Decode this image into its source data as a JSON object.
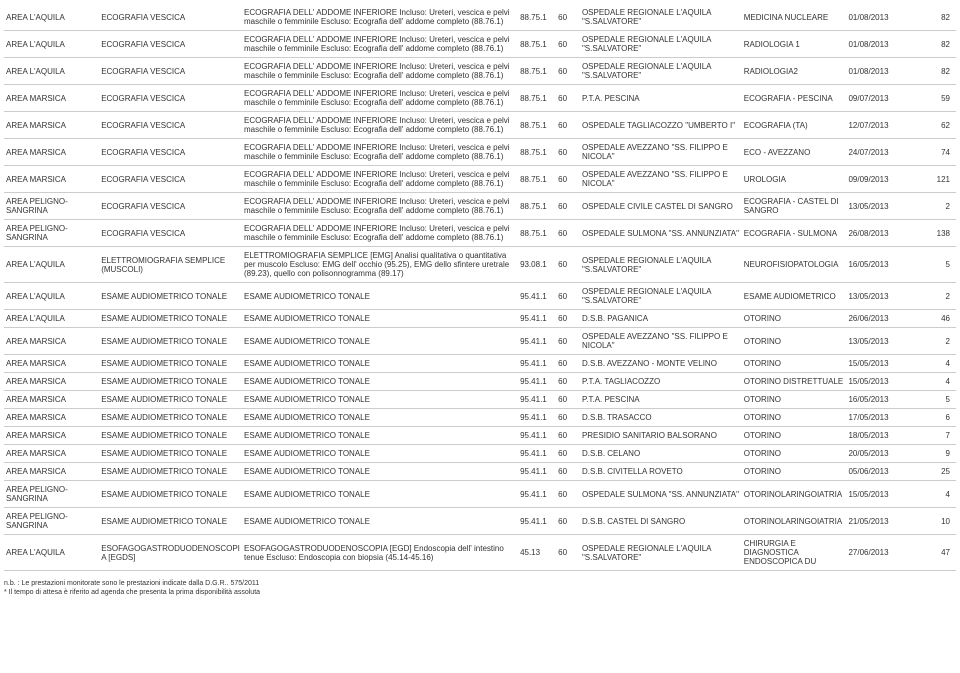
{
  "rows": [
    {
      "area": "AREA L'AQUILA",
      "exam": "ECOGRAFIA VESCICA",
      "desc": "ECOGRAFIA DELL' ADDOME INFERIORE Incluso: Ureteri, vescica e pelvi maschile o femminile Escluso: Ecografia dell' addome completo (88.76.1)",
      "code": "88.75.1",
      "days": "60",
      "facility": "OSPEDALE REGIONALE L'AQUILA \"S.SALVATORE\"",
      "unit": "MEDICINA NUCLEARE",
      "date": "01/08/2013",
      "wait": "82"
    },
    {
      "area": "AREA L'AQUILA",
      "exam": "ECOGRAFIA VESCICA",
      "desc": "ECOGRAFIA DELL' ADDOME INFERIORE Incluso: Ureteri, vescica e pelvi maschile o femminile Escluso: Ecografia dell' addome completo (88.76.1)",
      "code": "88.75.1",
      "days": "60",
      "facility": "OSPEDALE REGIONALE L'AQUILA \"S.SALVATORE\"",
      "unit": "RADIOLOGIA 1",
      "date": "01/08/2013",
      "wait": "82"
    },
    {
      "area": "AREA L'AQUILA",
      "exam": "ECOGRAFIA VESCICA",
      "desc": "ECOGRAFIA DELL' ADDOME INFERIORE Incluso: Ureteri, vescica e pelvi maschile o femminile Escluso: Ecografia dell' addome completo (88.76.1)",
      "code": "88.75.1",
      "days": "60",
      "facility": "OSPEDALE REGIONALE L'AQUILA \"S.SALVATORE\"",
      "unit": "RADIOLOGIA2",
      "date": "01/08/2013",
      "wait": "82"
    },
    {
      "area": "AREA MARSICA",
      "exam": "ECOGRAFIA VESCICA",
      "desc": "ECOGRAFIA DELL' ADDOME INFERIORE Incluso: Ureteri, vescica e pelvi maschile o femminile Escluso: Ecografia dell' addome completo (88.76.1)",
      "code": "88.75.1",
      "days": "60",
      "facility": "P.T.A. PESCINA",
      "unit": "ECOGRAFIA - PESCINA",
      "date": "09/07/2013",
      "wait": "59"
    },
    {
      "area": "AREA MARSICA",
      "exam": "ECOGRAFIA VESCICA",
      "desc": "ECOGRAFIA DELL' ADDOME INFERIORE Incluso: Ureteri, vescica e pelvi maschile o femminile Escluso: Ecografia dell' addome completo (88.76.1)",
      "code": "88.75.1",
      "days": "60",
      "facility": "OSPEDALE TAGLIACOZZO \"UMBERTO I\"",
      "unit": "ECOGRAFIA (TA)",
      "date": "12/07/2013",
      "wait": "62"
    },
    {
      "area": "AREA MARSICA",
      "exam": "ECOGRAFIA VESCICA",
      "desc": "ECOGRAFIA DELL' ADDOME INFERIORE Incluso: Ureteri, vescica e pelvi maschile o femminile Escluso: Ecografia dell' addome completo (88.76.1)",
      "code": "88.75.1",
      "days": "60",
      "facility": "OSPEDALE AVEZZANO \"SS. FILIPPO E NICOLA\"",
      "unit": "ECO - AVEZZANO",
      "date": "24/07/2013",
      "wait": "74"
    },
    {
      "area": "AREA MARSICA",
      "exam": "ECOGRAFIA VESCICA",
      "desc": "ECOGRAFIA DELL' ADDOME INFERIORE Incluso: Ureteri, vescica e pelvi maschile o femminile Escluso: Ecografia dell' addome completo (88.76.1)",
      "code": "88.75.1",
      "days": "60",
      "facility": "OSPEDALE AVEZZANO \"SS. FILIPPO E NICOLA\"",
      "unit": "UROLOGIA",
      "date": "09/09/2013",
      "wait": "121"
    },
    {
      "area": "AREA PELIGNO-SANGRINA",
      "exam": "ECOGRAFIA VESCICA",
      "desc": "ECOGRAFIA DELL' ADDOME INFERIORE Incluso: Ureteri, vescica e pelvi maschile o femminile Escluso: Ecografia dell' addome completo (88.76.1)",
      "code": "88.75.1",
      "days": "60",
      "facility": "OSPEDALE CIVILE CASTEL DI SANGRO",
      "unit": "ECOGRAFIA - CASTEL DI SANGRO",
      "date": "13/05/2013",
      "wait": "2"
    },
    {
      "area": "AREA PELIGNO-SANGRINA",
      "exam": "ECOGRAFIA VESCICA",
      "desc": "ECOGRAFIA DELL' ADDOME INFERIORE Incluso: Ureteri, vescica e pelvi maschile o femminile Escluso: Ecografia dell' addome completo (88.76.1)",
      "code": "88.75.1",
      "days": "60",
      "facility": "OSPEDALE SULMONA \"SS. ANNUNZIATA\"",
      "unit": "ECOGRAFIA - SULMONA",
      "date": "26/08/2013",
      "wait": "138"
    },
    {
      "area": "AREA L'AQUILA",
      "exam": "ELETTROMIOGRAFIA SEMPLICE (MUSCOLI)",
      "desc": "ELETTROMIOGRAFIA SEMPLICE [EMG] Analisi qualitativa o quantitativa per muscolo Escluso: EMG dell' occhio (95.25), EMG dello sfintere uretrale (89.23), quello con polisonnogramma (89.17)",
      "code": "93.08.1",
      "days": "60",
      "facility": "OSPEDALE REGIONALE L'AQUILA \"S.SALVATORE\"",
      "unit": "NEUROFISIOPATOLOGIA",
      "date": "16/05/2013",
      "wait": "5"
    },
    {
      "area": "AREA L'AQUILA",
      "exam": "ESAME AUDIOMETRICO TONALE",
      "desc": "ESAME AUDIOMETRICO TONALE",
      "code": "95.41.1",
      "days": "60",
      "facility": "OSPEDALE REGIONALE L'AQUILA \"S.SALVATORE\"",
      "unit": "ESAME AUDIOMETRICO",
      "date": "13/05/2013",
      "wait": "2"
    },
    {
      "area": "AREA L'AQUILA",
      "exam": "ESAME AUDIOMETRICO TONALE",
      "desc": "ESAME AUDIOMETRICO TONALE",
      "code": "95.41.1",
      "days": "60",
      "facility": "D.S.B. PAGANICA",
      "unit": "OTORINO",
      "date": "26/06/2013",
      "wait": "46"
    },
    {
      "area": "AREA MARSICA",
      "exam": "ESAME AUDIOMETRICO TONALE",
      "desc": "ESAME AUDIOMETRICO TONALE",
      "code": "95.41.1",
      "days": "60",
      "facility": "OSPEDALE AVEZZANO \"SS. FILIPPO E NICOLA\"",
      "unit": "OTORINO",
      "date": "13/05/2013",
      "wait": "2"
    },
    {
      "area": "AREA MARSICA",
      "exam": "ESAME AUDIOMETRICO TONALE",
      "desc": "ESAME AUDIOMETRICO TONALE",
      "code": "95.41.1",
      "days": "60",
      "facility": "D.S.B. AVEZZANO - MONTE VELINO",
      "unit": "OTORINO",
      "date": "15/05/2013",
      "wait": "4"
    },
    {
      "area": "AREA MARSICA",
      "exam": "ESAME AUDIOMETRICO TONALE",
      "desc": "ESAME AUDIOMETRICO TONALE",
      "code": "95.41.1",
      "days": "60",
      "facility": "P.T.A. TAGLIACOZZO",
      "unit": "OTORINO DISTRETTUALE",
      "date": "15/05/2013",
      "wait": "4"
    },
    {
      "area": "AREA MARSICA",
      "exam": "ESAME AUDIOMETRICO TONALE",
      "desc": "ESAME AUDIOMETRICO TONALE",
      "code": "95.41.1",
      "days": "60",
      "facility": "P.T.A. PESCINA",
      "unit": "OTORINO",
      "date": "16/05/2013",
      "wait": "5"
    },
    {
      "area": "AREA MARSICA",
      "exam": "ESAME AUDIOMETRICO TONALE",
      "desc": "ESAME AUDIOMETRICO TONALE",
      "code": "95.41.1",
      "days": "60",
      "facility": "D.S.B. TRASACCO",
      "unit": "OTORINO",
      "date": "17/05/2013",
      "wait": "6"
    },
    {
      "area": "AREA MARSICA",
      "exam": "ESAME AUDIOMETRICO TONALE",
      "desc": "ESAME AUDIOMETRICO TONALE",
      "code": "95.41.1",
      "days": "60",
      "facility": "PRESIDIO SANITARIO BALSORANO",
      "unit": "OTORINO",
      "date": "18/05/2013",
      "wait": "7"
    },
    {
      "area": "AREA MARSICA",
      "exam": "ESAME AUDIOMETRICO TONALE",
      "desc": "ESAME AUDIOMETRICO TONALE",
      "code": "95.41.1",
      "days": "60",
      "facility": "D.S.B. CELANO",
      "unit": "OTORINO",
      "date": "20/05/2013",
      "wait": "9"
    },
    {
      "area": "AREA MARSICA",
      "exam": "ESAME AUDIOMETRICO TONALE",
      "desc": "ESAME AUDIOMETRICO TONALE",
      "code": "95.41.1",
      "days": "60",
      "facility": "D.S.B. CIVITELLA ROVETO",
      "unit": "OTORINO",
      "date": "05/06/2013",
      "wait": "25"
    },
    {
      "area": "AREA PELIGNO-SANGRINA",
      "exam": "ESAME AUDIOMETRICO TONALE",
      "desc": "ESAME AUDIOMETRICO TONALE",
      "code": "95.41.1",
      "days": "60",
      "facility": "OSPEDALE SULMONA \"SS. ANNUNZIATA\"",
      "unit": "OTORINOLARINGOIATRIA",
      "date": "15/05/2013",
      "wait": "4"
    },
    {
      "area": "AREA PELIGNO-SANGRINA",
      "exam": "ESAME AUDIOMETRICO TONALE",
      "desc": "ESAME AUDIOMETRICO TONALE",
      "code": "95.41.1",
      "days": "60",
      "facility": "D.S.B. CASTEL DI SANGRO",
      "unit": "OTORINOLARINGOIATRIA",
      "date": "21/05/2013",
      "wait": "10"
    },
    {
      "area": "AREA L'AQUILA",
      "exam": "ESOFAGOGASTRODUODENOSCOPIA [EGDS]",
      "desc": "ESOFAGOGASTRODUODENOSCOPIA [EGD] Endoscopia dell' intestino tenue Escluso: Endoscopia con biopsia (45.14-45.16)",
      "code": "45.13",
      "days": "60",
      "facility": "OSPEDALE REGIONALE L'AQUILA \"S.SALVATORE\"",
      "unit": "CHIRURGIA E DIAGNOSTICA ENDOSCOPICA DU",
      "date": "27/06/2013",
      "wait": "47"
    }
  ],
  "footer": {
    "l1": "n.b. : Le prestazioni monitorate sono le prestazioni indicate dalla D.G.R.. 575/2011",
    "l2": "* Il tempo di attesa è riferito ad agenda che presenta la prima disponibilità assoluta"
  }
}
